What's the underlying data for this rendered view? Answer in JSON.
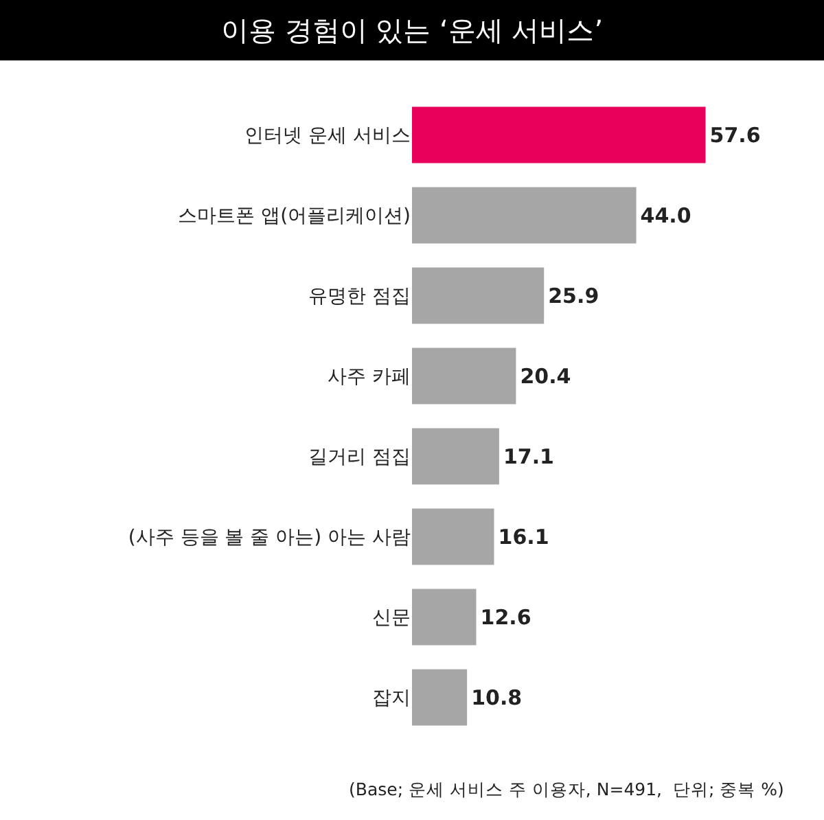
{
  "chart_data": {
    "type": "bar",
    "orientation": "horizontal",
    "title": "이용 경험이 있는 ‘운세 서비스’",
    "categories": [
      "인터넷 운세 서비스",
      "스마트폰 앱(어플리케이션)",
      "유명한 점집",
      "사주 카페",
      "길거리 점집",
      "(사주 등을 볼 줄 아는) 아는 사람",
      "신문",
      "잡지"
    ],
    "values": [
      57.6,
      44.0,
      25.9,
      20.4,
      17.1,
      16.1,
      12.6,
      10.8
    ],
    "value_labels": [
      "57.6",
      "44.0",
      "25.9",
      "20.4",
      "17.1",
      "16.1",
      "12.6",
      "10.8"
    ],
    "colors": [
      "#e8005a",
      "#a6a6a6",
      "#a6a6a6",
      "#a6a6a6",
      "#a6a6a6",
      "#a6a6a6",
      "#a6a6a6",
      "#a6a6a6"
    ],
    "annotations": [
      "(Base; 운세 서비스 주 이용자, N=491,  단위; 중복 %)"
    ]
  }
}
